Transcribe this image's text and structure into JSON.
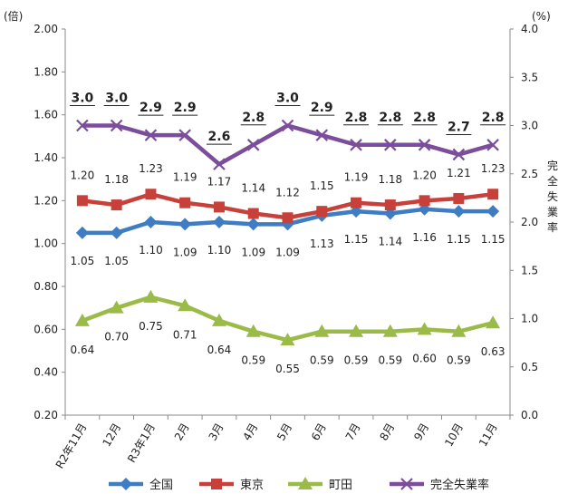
{
  "chart_data": {
    "type": "line",
    "categories": [
      "R2年11月",
      "12月",
      "R3年1月",
      "2月",
      "3月",
      "4月",
      "5月",
      "6月",
      "7月",
      "8月",
      "9月",
      "10月",
      "11月"
    ],
    "left_axis": {
      "unit": "(倍)",
      "ylim": [
        0.2,
        2.0
      ],
      "ticks": [
        "0.20",
        "0.40",
        "0.60",
        "0.80",
        "1.00",
        "1.20",
        "1.40",
        "1.60",
        "1.80",
        "2.00"
      ]
    },
    "right_axis": {
      "unit": "(%)",
      "label": "完全失業率",
      "ylim": [
        0.0,
        4.0
      ],
      "ticks": [
        "0.0",
        "0.5",
        "1.0",
        "1.5",
        "2.0",
        "2.5",
        "3.0",
        "3.5",
        "4.0"
      ]
    },
    "series": [
      {
        "name": "全国",
        "axis": "left",
        "color": "#3e7cc4",
        "marker": "diamond",
        "values": [
          1.05,
          1.05,
          1.1,
          1.09,
          1.1,
          1.09,
          1.09,
          1.13,
          1.15,
          1.14,
          1.16,
          1.15,
          1.15
        ],
        "labels": [
          "1.05",
          "1.05",
          "1.10",
          "1.09",
          "1.10",
          "1.09",
          "1.09",
          "1.13",
          "1.15",
          "1.14",
          "1.16",
          "1.15",
          "1.15"
        ]
      },
      {
        "name": "東京",
        "axis": "left",
        "color": "#c8403a",
        "marker": "square",
        "values": [
          1.2,
          1.18,
          1.23,
          1.19,
          1.17,
          1.14,
          1.12,
          1.15,
          1.19,
          1.18,
          1.2,
          1.21,
          1.23
        ],
        "labels": [
          "1.20",
          "1.18",
          "1.23",
          "1.19",
          "1.17",
          "1.14",
          "1.12",
          "1.15",
          "1.19",
          "1.18",
          "1.20",
          "1.21",
          "1.23"
        ]
      },
      {
        "name": "町田",
        "axis": "left",
        "color": "#9bbb48",
        "marker": "triangle",
        "values": [
          0.64,
          0.7,
          0.75,
          0.71,
          0.64,
          0.59,
          0.55,
          0.59,
          0.59,
          0.59,
          0.6,
          0.59,
          0.63
        ],
        "labels": [
          "0.64",
          "0.70",
          "0.75",
          "0.71",
          "0.64",
          "0.59",
          "0.55",
          "0.59",
          "0.59",
          "0.59",
          "0.60",
          "0.59",
          "0.63"
        ]
      },
      {
        "name": "完全失業率",
        "axis": "right",
        "color": "#7b4d9b",
        "marker": "x",
        "values": [
          3.0,
          3.0,
          2.9,
          2.9,
          2.6,
          2.8,
          3.0,
          2.9,
          2.8,
          2.8,
          2.8,
          2.7,
          2.8
        ],
        "labels": [
          "3.0",
          "3.0",
          "2.9",
          "2.9",
          "2.6",
          "2.8",
          "3.0",
          "2.9",
          "2.8",
          "2.8",
          "2.8",
          "2.7",
          "2.8"
        ]
      }
    ],
    "legend": {
      "position": "bottom",
      "entries": [
        "全国",
        "東京",
        "町田",
        "完全失業率"
      ]
    },
    "grid": false
  }
}
